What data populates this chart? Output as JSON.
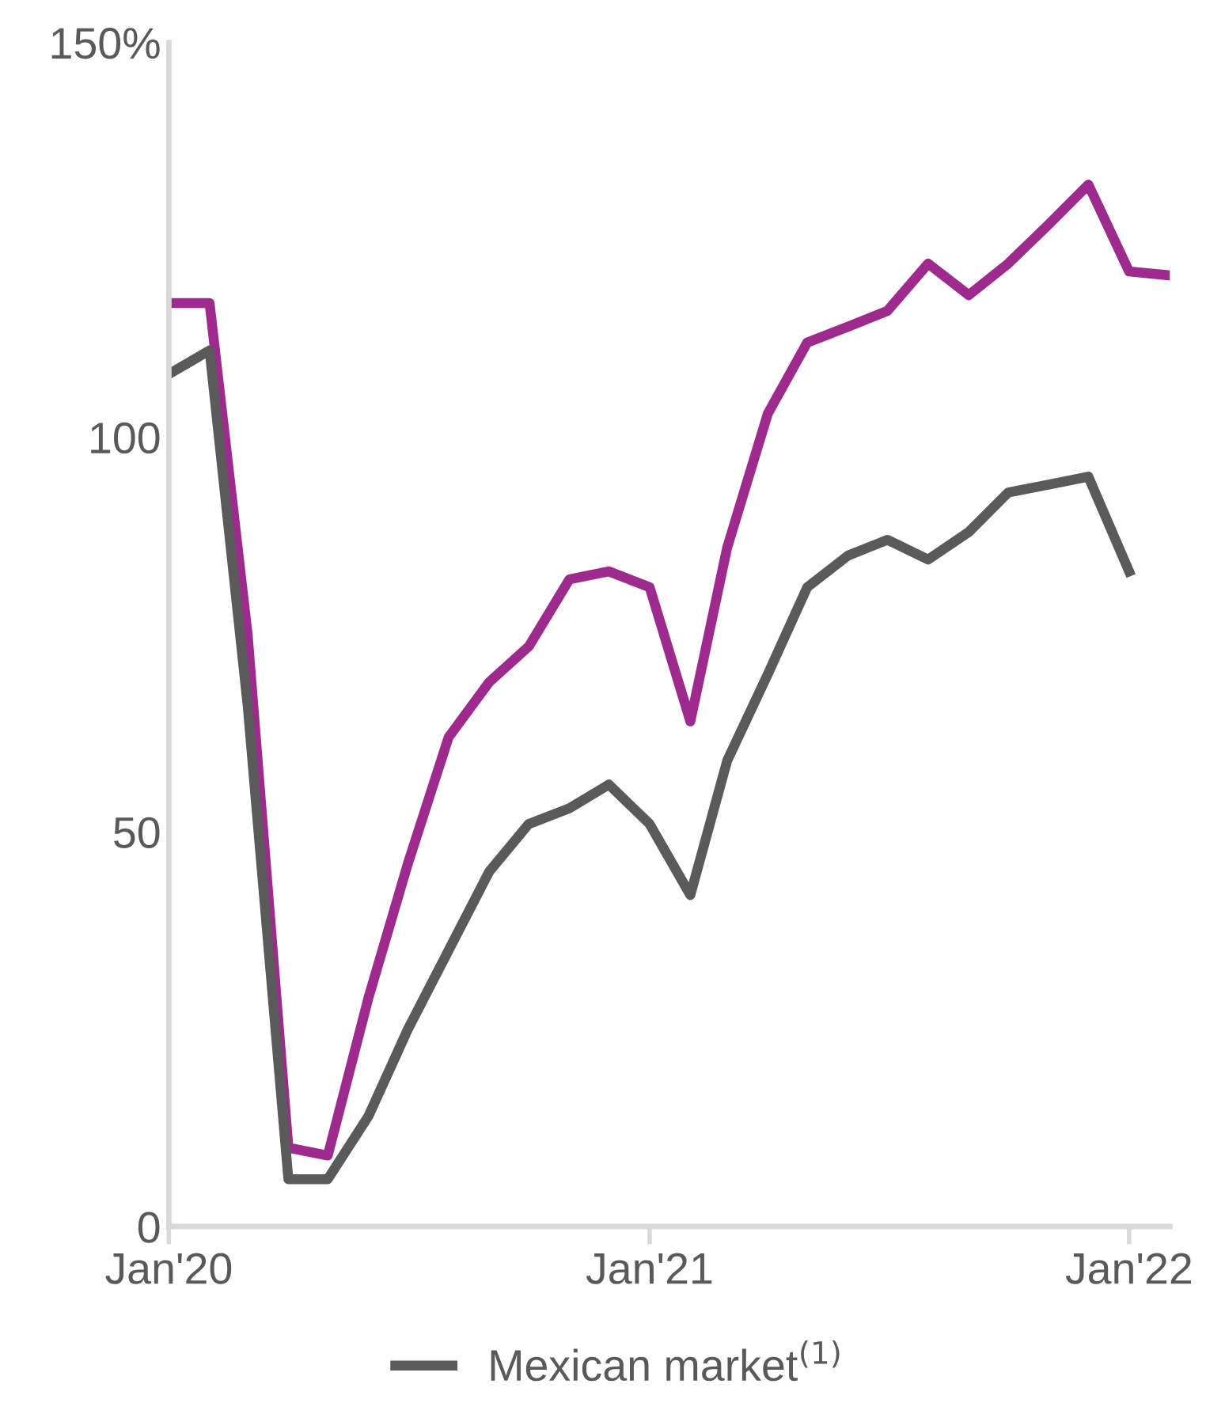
{
  "chart_data": {
    "type": "line",
    "x": [
      "2020-01",
      "2020-02",
      "2020-03",
      "2020-04",
      "2020-05",
      "2020-06",
      "2020-07",
      "2020-08",
      "2020-09",
      "2020-10",
      "2020-11",
      "2020-12",
      "2021-01",
      "2021-02",
      "2021-03",
      "2021-04",
      "2021-05",
      "2021-06",
      "2021-07",
      "2021-08",
      "2021-09",
      "2021-10",
      "2021-11",
      "2021-12",
      "2022-01",
      "2022-02"
    ],
    "series": [
      {
        "color": "#9e2a8e",
        "values": [
          117,
          117,
          75,
          10,
          9,
          29,
          46,
          62,
          69,
          73.5,
          82,
          83,
          81,
          64,
          86,
          103,
          112,
          114,
          116,
          122,
          118,
          122,
          127,
          132,
          121,
          120.5
        ]
      },
      {
        "name": "Mexican market$^{(1)}$",
        "color": "#5a5a5a",
        "values": [
          108,
          111,
          66,
          6,
          6,
          14,
          25,
          35,
          45,
          51,
          53,
          56,
          51,
          42,
          59,
          70,
          81,
          85,
          87,
          84.5,
          88,
          93,
          94,
          95,
          83,
          null
        ]
      }
    ],
    "xlim": [
      "2020-01",
      "2022-02"
    ],
    "xticks": [
      {
        "value": "2020-01",
        "label": "Jan'20"
      },
      {
        "value": "2021-01",
        "label": "Jan'21"
      },
      {
        "value": "2022-01",
        "label": "Jan'22"
      }
    ],
    "ylim": [
      0,
      150
    ],
    "yticks": [
      0,
      50,
      100,
      {
        "value": 150,
        "label": "150%"
      }
    ],
    "legend": "bottom"
  }
}
